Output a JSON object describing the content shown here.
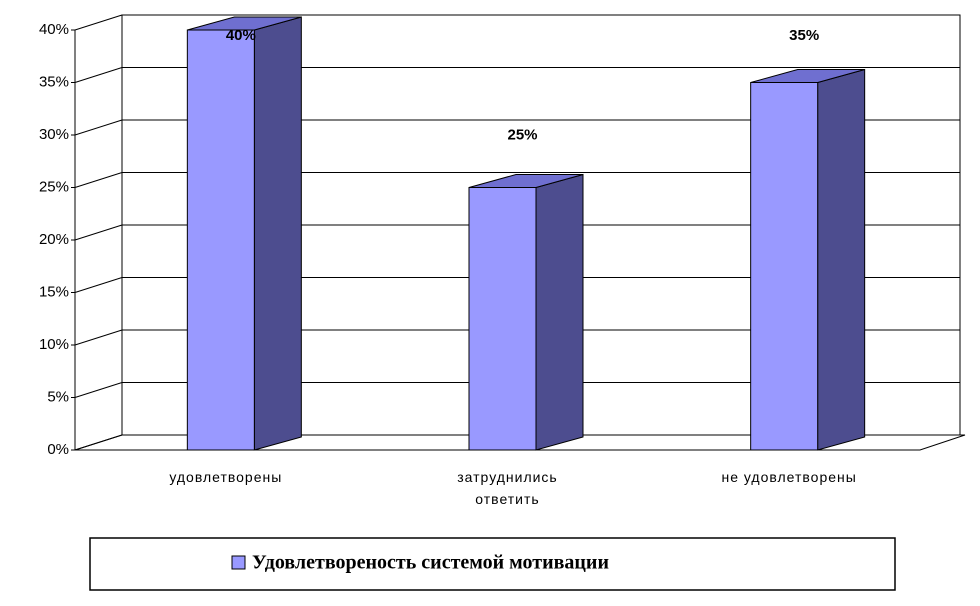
{
  "chart_data": {
    "type": "bar3d",
    "categories": [
      "удовлетворены",
      "затруднились ответить",
      "не удовлетворены"
    ],
    "series": [
      {
        "name": "Удовлетвореность системой мотивации",
        "color": "#9999ff",
        "values": [
          40,
          25,
          35
        ],
        "value_labels": [
          "40%",
          "25%",
          "35%"
        ]
      }
    ],
    "ylim": [
      0,
      40
    ],
    "yticks": [
      {
        "value": 0,
        "label": "0%"
      },
      {
        "value": 5,
        "label": "5%"
      },
      {
        "value": 10,
        "label": "10%"
      },
      {
        "value": 15,
        "label": "15%"
      },
      {
        "value": 20,
        "label": "20%"
      },
      {
        "value": 25,
        "label": "25%"
      },
      {
        "value": 30,
        "label": "30%"
      },
      {
        "value": 35,
        "label": "35%"
      },
      {
        "value": 40,
        "label": "40%"
      }
    ],
    "grid": true,
    "legend": "bottom"
  }
}
